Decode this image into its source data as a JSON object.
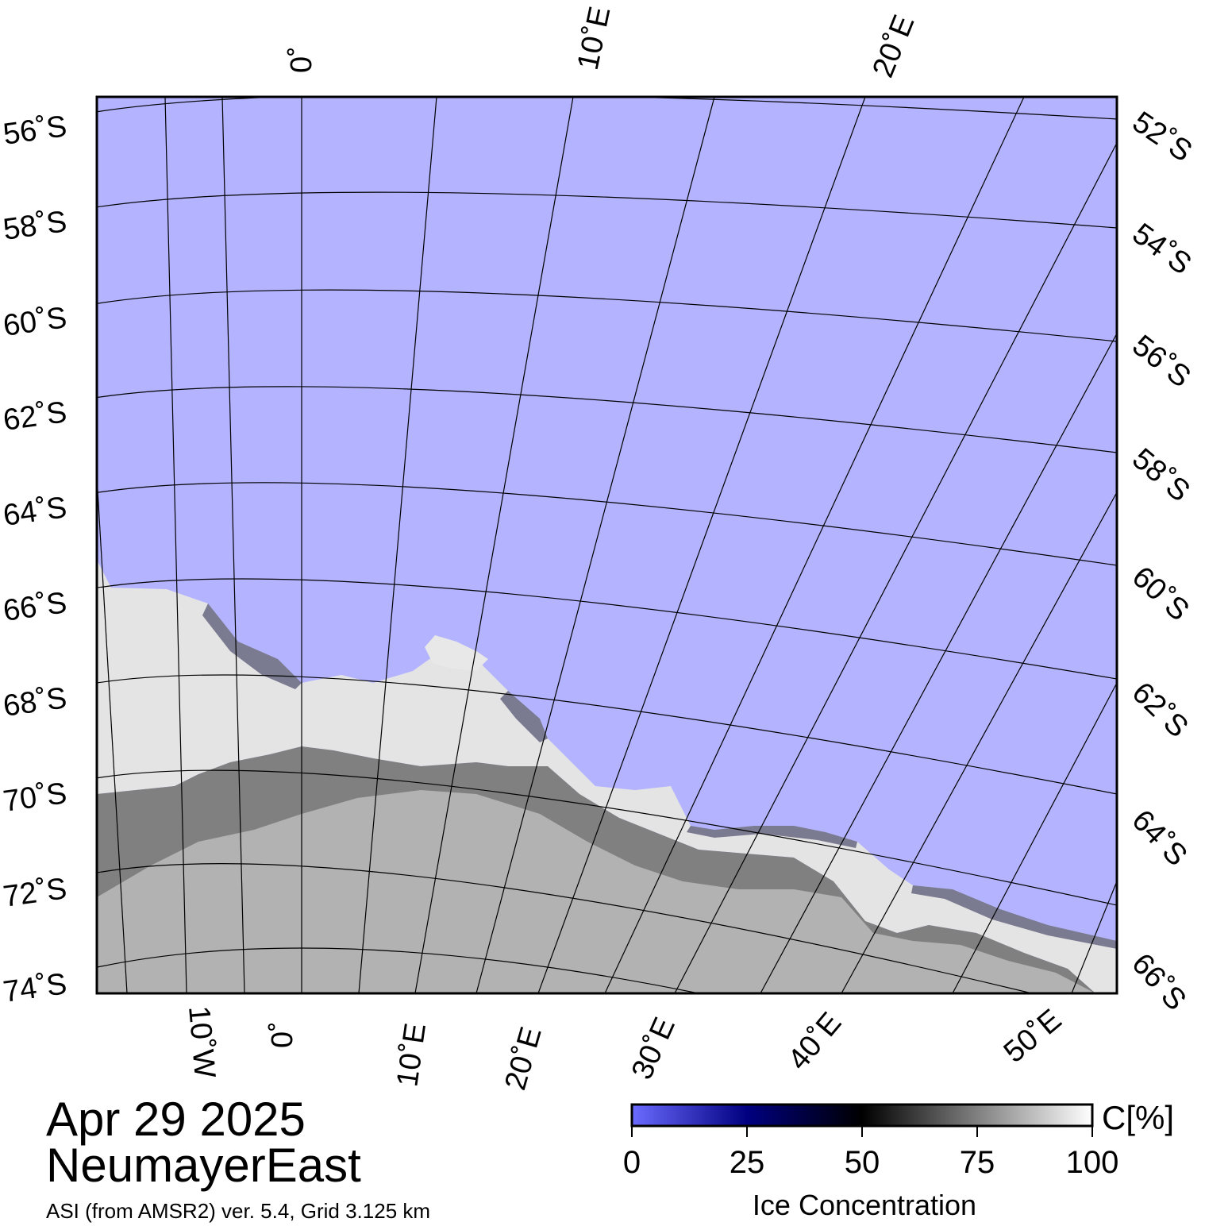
{
  "map": {
    "top_lon_labels": [
      "0˚",
      "10˚E",
      "20˚E"
    ],
    "bottom_lon_labels": [
      "10˚W",
      "0˚",
      "10˚E",
      "20˚E",
      "30˚E",
      "40˚E",
      "50˚E"
    ],
    "left_lat_labels": [
      "56˚S",
      "58˚S",
      "60˚S",
      "62˚S",
      "64˚S",
      "66˚S",
      "68˚S",
      "70˚S",
      "72˚S",
      "74˚S"
    ],
    "right_lat_labels": [
      "52˚S",
      "54˚S",
      "56˚S",
      "58˚S",
      "60˚S",
      "62˚S",
      "64˚S",
      "66˚S"
    ],
    "colors": {
      "open_water": "#b3b3ff",
      "land": "#b2b2b2",
      "ice_shelf": "#808080",
      "grid": "#000000",
      "frame": "#000000"
    }
  },
  "info": {
    "date": "Apr 29 2025",
    "region": "NeumayerEast",
    "source": "ASI (from AMSR2) ver. 5.4,  Grid 3.125 km"
  },
  "colorbar": {
    "ticks": [
      "0",
      "25",
      "50",
      "75",
      "100"
    ],
    "unit": "C[%]",
    "title": "Ice Concentration",
    "stops": [
      "#6b6bff",
      "#000080",
      "#000000",
      "#808080",
      "#ffffff"
    ]
  }
}
